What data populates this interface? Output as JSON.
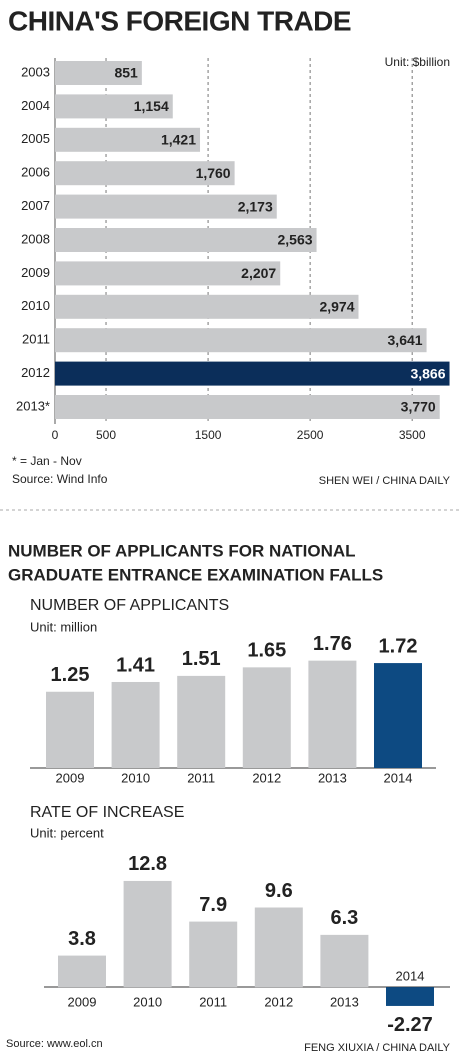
{
  "chart_data": [
    {
      "type": "hbar",
      "title": "CHINA'S FOREIGN TRADE",
      "unit": "Unit: $billion",
      "categories": [
        "2003",
        "2004",
        "2005",
        "2006",
        "2007",
        "2008",
        "2009",
        "2010",
        "2011",
        "2012",
        "2013*"
      ],
      "values": [
        851,
        1154,
        1421,
        1760,
        2173,
        2563,
        2207,
        2974,
        3641,
        3866,
        3770
      ],
      "value_labels": [
        "851",
        "1,154",
        "1,421",
        "1,760",
        "2,173",
        "2,563",
        "2,207",
        "2,974",
        "3,641",
        "3,866",
        "3,770"
      ],
      "colors": [
        "#c8c9cb",
        "#c8c9cb",
        "#c8c9cb",
        "#c8c9cb",
        "#c8c9cb",
        "#c8c9cb",
        "#c8c9cb",
        "#c8c9cb",
        "#c8c9cb",
        "#0b2e5a",
        "#c8c9cb"
      ],
      "xlim": [
        0,
        3900
      ],
      "xticks": [
        0,
        500,
        1500,
        2500,
        3500
      ],
      "grid": true,
      "notes": [
        "* = Jan - Nov",
        "Source: Wind Info"
      ],
      "credit": "SHEN WEI / CHINA DAILY"
    },
    {
      "type": "bar",
      "title": "NUMBER OF APPLICANTS",
      "unit": "Unit: million",
      "categories": [
        "2009",
        "2010",
        "2011",
        "2012",
        "2013",
        "2014"
      ],
      "values": [
        1.25,
        1.41,
        1.51,
        1.65,
        1.76,
        1.72
      ],
      "colors": [
        "#c8c9cb",
        "#c8c9cb",
        "#c8c9cb",
        "#c8c9cb",
        "#c8c9cb",
        "#0d4a82"
      ],
      "ylim": [
        0,
        2
      ]
    },
    {
      "type": "bar",
      "title": "RATE OF INCREASE",
      "unit": "Unit: percent",
      "categories": [
        "2009",
        "2010",
        "2011",
        "2012",
        "2013",
        "2014"
      ],
      "values": [
        3.8,
        12.8,
        7.9,
        9.6,
        6.3,
        -2.27
      ],
      "colors": [
        "#c8c9cb",
        "#c8c9cb",
        "#c8c9cb",
        "#c8c9cb",
        "#c8c9cb",
        "#0d4a82"
      ],
      "ylim": [
        -3,
        14
      ]
    }
  ],
  "headline": [
    "NUMBER OF APPLICANTS FOR NATIONAL",
    "GRADUATE ENTRANCE EXAMINATION FALLS"
  ],
  "source": "Source: www.eol.cn",
  "credit": "FENG XIUXIA / CHINA DAILY"
}
